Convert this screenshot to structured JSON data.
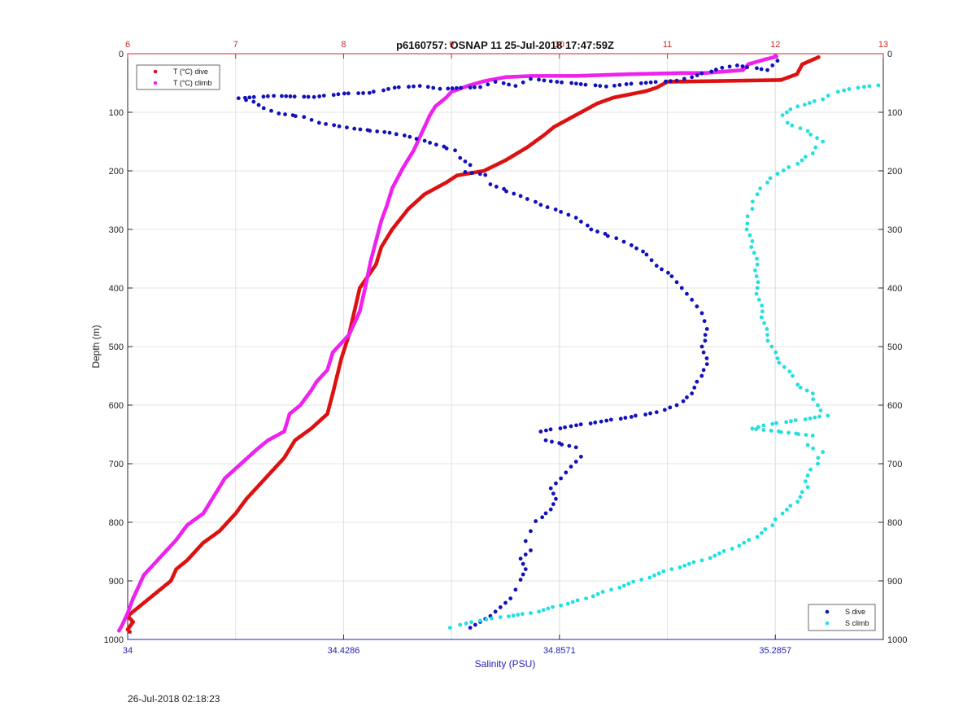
{
  "chart_data": {
    "type": "scatter",
    "title": "p6160757: OSNAP 11 25-Jul-2018 17:47:59Z",
    "ylabel": "Depth (m)",
    "xlabel_bottom": "Salinity (PSU)",
    "ylim": [
      0,
      1000
    ],
    "y_reversed": true,
    "y_ticks": [
      0,
      100,
      200,
      300,
      400,
      500,
      600,
      700,
      800,
      900,
      1000
    ],
    "x_top": {
      "range": [
        6,
        13
      ],
      "ticks": [
        6,
        7,
        8,
        9,
        10,
        11,
        12,
        13
      ],
      "color": "#d62728"
    },
    "x_bottom": {
      "range": [
        34,
        35.5
      ],
      "ticks": [
        34,
        34.4286,
        34.8571,
        35.2857
      ],
      "tick_labels": [
        "34",
        "34.4286",
        "34.8571",
        "35.2857"
      ],
      "color": "#1f1fb4"
    },
    "grid": true,
    "legend_top_left": [
      "T (°C) dive",
      "T (°C) climb"
    ],
    "legend_bottom_right": [
      "S dive",
      "S climb"
    ],
    "series": [
      {
        "name": "T (°C) dive",
        "axis": "top",
        "color": "#dd1111",
        "points": [
          [
            12.4,
            6
          ],
          [
            12.25,
            18
          ],
          [
            12.2,
            35
          ],
          [
            12.05,
            45
          ],
          [
            11.0,
            48
          ],
          [
            10.9,
            58
          ],
          [
            10.8,
            64
          ],
          [
            10.5,
            75
          ],
          [
            10.35,
            85
          ],
          [
            10.2,
            100
          ],
          [
            10.05,
            115
          ],
          [
            9.95,
            125
          ],
          [
            9.85,
            140
          ],
          [
            9.7,
            160
          ],
          [
            9.5,
            182
          ],
          [
            9.3,
            200
          ],
          [
            9.05,
            208
          ],
          [
            8.95,
            220
          ],
          [
            8.75,
            240
          ],
          [
            8.6,
            265
          ],
          [
            8.45,
            300
          ],
          [
            8.35,
            330
          ],
          [
            8.3,
            360
          ],
          [
            8.15,
            400
          ],
          [
            8.1,
            440
          ],
          [
            8.05,
            480
          ],
          [
            7.98,
            520
          ],
          [
            7.9,
            580
          ],
          [
            7.85,
            615
          ],
          [
            7.7,
            640
          ],
          [
            7.55,
            660
          ],
          [
            7.45,
            690
          ],
          [
            7.35,
            710
          ],
          [
            7.2,
            740
          ],
          [
            7.1,
            760
          ],
          [
            7.0,
            785
          ],
          [
            6.85,
            815
          ],
          [
            6.7,
            835
          ],
          [
            6.55,
            865
          ],
          [
            6.45,
            880
          ],
          [
            6.4,
            900
          ],
          [
            6.3,
            915
          ],
          [
            6.2,
            930
          ],
          [
            6.1,
            945
          ],
          [
            6.0,
            960
          ],
          [
            6.05,
            970
          ],
          [
            6.0,
            983
          ],
          [
            6.02,
            987
          ]
        ]
      },
      {
        "name": "T (°C) climb",
        "axis": "top",
        "color": "#ee22ee",
        "points": [
          [
            12.0,
            3
          ],
          [
            12.01,
            5
          ],
          [
            11.9,
            10
          ],
          [
            11.75,
            18
          ],
          [
            11.7,
            28
          ],
          [
            11.35,
            33
          ],
          [
            11.15,
            33
          ],
          [
            10.65,
            35
          ],
          [
            10.15,
            38
          ],
          [
            9.75,
            38
          ],
          [
            9.5,
            40
          ],
          [
            9.3,
            47
          ],
          [
            9.15,
            55
          ],
          [
            9.0,
            65
          ],
          [
            8.95,
            75
          ],
          [
            8.85,
            90
          ],
          [
            8.8,
            105
          ],
          [
            8.75,
            125
          ],
          [
            8.7,
            145
          ],
          [
            8.65,
            165
          ],
          [
            8.55,
            195
          ],
          [
            8.45,
            230
          ],
          [
            8.4,
            260
          ],
          [
            8.35,
            285
          ],
          [
            8.3,
            320
          ],
          [
            8.25,
            355
          ],
          [
            8.2,
            400
          ],
          [
            8.15,
            440
          ],
          [
            8.05,
            480
          ],
          [
            7.9,
            510
          ],
          [
            7.85,
            540
          ],
          [
            7.75,
            560
          ],
          [
            7.7,
            575
          ],
          [
            7.6,
            600
          ],
          [
            7.5,
            615
          ],
          [
            7.45,
            645
          ],
          [
            7.3,
            660
          ],
          [
            7.2,
            675
          ],
          [
            7.05,
            700
          ],
          [
            6.9,
            725
          ],
          [
            6.8,
            755
          ],
          [
            6.7,
            785
          ],
          [
            6.55,
            805
          ],
          [
            6.45,
            830
          ],
          [
            6.35,
            850
          ],
          [
            6.25,
            870
          ],
          [
            6.15,
            890
          ],
          [
            6.1,
            910
          ],
          [
            6.05,
            930
          ],
          [
            6.0,
            955
          ],
          [
            5.95,
            975
          ],
          [
            5.92,
            985
          ]
        ]
      },
      {
        "name": "S dive",
        "axis": "bottom",
        "color": "#1111bb",
        "points": [
          [
            35.29,
            12
          ],
          [
            35.27,
            28
          ],
          [
            35.21,
            20
          ],
          [
            35.18,
            24
          ],
          [
            35.12,
            40
          ],
          [
            35.09,
            46
          ],
          [
            34.99,
            52
          ],
          [
            34.95,
            56
          ],
          [
            34.84,
            47
          ],
          [
            34.8,
            43
          ],
          [
            34.77,
            55
          ],
          [
            34.73,
            48
          ],
          [
            34.7,
            57
          ],
          [
            34.62,
            60
          ],
          [
            34.58,
            55
          ],
          [
            34.53,
            58
          ],
          [
            34.48,
            67
          ],
          [
            34.43,
            68
          ],
          [
            34.37,
            74
          ],
          [
            34.29,
            72
          ],
          [
            34.22,
            76
          ],
          [
            34.25,
            82
          ],
          [
            34.27,
            93
          ],
          [
            34.3,
            102
          ],
          [
            34.35,
            108
          ],
          [
            34.38,
            118
          ],
          [
            34.42,
            124
          ],
          [
            34.45,
            128
          ],
          [
            34.52,
            135
          ],
          [
            34.56,
            142
          ],
          [
            34.6,
            152
          ],
          [
            34.65,
            165
          ],
          [
            34.66,
            178
          ],
          [
            34.68,
            190
          ],
          [
            34.67,
            202
          ],
          [
            34.71,
            207
          ],
          [
            34.72,
            223
          ],
          [
            34.78,
            243
          ],
          [
            34.82,
            258
          ],
          [
            34.86,
            270
          ],
          [
            34.89,
            280
          ],
          [
            34.92,
            300
          ],
          [
            34.97,
            315
          ],
          [
            35.0,
            327
          ],
          [
            35.03,
            343
          ],
          [
            35.05,
            362
          ],
          [
            35.08,
            380
          ],
          [
            35.1,
            400
          ],
          [
            35.12,
            420
          ],
          [
            35.14,
            443
          ],
          [
            35.15,
            470
          ],
          [
            35.14,
            500
          ],
          [
            35.15,
            530
          ],
          [
            35.13,
            560
          ],
          [
            35.12,
            580
          ],
          [
            35.09,
            600
          ],
          [
            35.05,
            612
          ],
          [
            35.0,
            620
          ],
          [
            34.94,
            628
          ],
          [
            34.88,
            636
          ],
          [
            34.82,
            645
          ],
          [
            34.83,
            660
          ],
          [
            34.89,
            672
          ],
          [
            34.9,
            688
          ],
          [
            34.88,
            705
          ],
          [
            34.86,
            725
          ],
          [
            34.84,
            742
          ],
          [
            34.85,
            760
          ],
          [
            34.84,
            778
          ],
          [
            34.81,
            798
          ],
          [
            34.8,
            815
          ],
          [
            34.79,
            832
          ],
          [
            34.8,
            848
          ],
          [
            34.78,
            862
          ],
          [
            34.79,
            880
          ],
          [
            34.78,
            898
          ],
          [
            34.77,
            915
          ],
          [
            34.76,
            930
          ],
          [
            34.74,
            945
          ],
          [
            34.72,
            960
          ],
          [
            34.7,
            970
          ],
          [
            34.68,
            980
          ]
        ]
      },
      {
        "name": "S climb",
        "axis": "bottom",
        "color": "#22e0e0",
        "points": [
          [
            35.49,
            54
          ],
          [
            35.45,
            58
          ],
          [
            35.41,
            65
          ],
          [
            35.38,
            78
          ],
          [
            35.33,
            90
          ],
          [
            35.3,
            105
          ],
          [
            35.31,
            118
          ],
          [
            35.35,
            132
          ],
          [
            35.38,
            150
          ],
          [
            35.36,
            170
          ],
          [
            35.33,
            188
          ],
          [
            35.29,
            205
          ],
          [
            35.27,
            220
          ],
          [
            35.25,
            240
          ],
          [
            35.24,
            265
          ],
          [
            35.23,
            290
          ],
          [
            35.24,
            320
          ],
          [
            35.25,
            360
          ],
          [
            35.25,
            400
          ],
          [
            35.26,
            440
          ],
          [
            35.27,
            480
          ],
          [
            35.29,
            520
          ],
          [
            35.32,
            550
          ],
          [
            35.33,
            565
          ],
          [
            35.36,
            580
          ],
          [
            35.37,
            600
          ],
          [
            35.39,
            618
          ],
          [
            35.28,
            632
          ],
          [
            35.24,
            640
          ],
          [
            35.36,
            652
          ],
          [
            35.35,
            668
          ],
          [
            35.38,
            680
          ],
          [
            35.37,
            700
          ],
          [
            35.35,
            720
          ],
          [
            35.35,
            740
          ],
          [
            35.33,
            765
          ],
          [
            35.3,
            785
          ],
          [
            35.28,
            805
          ],
          [
            35.25,
            825
          ],
          [
            35.2,
            845
          ],
          [
            35.14,
            865
          ],
          [
            35.08,
            880
          ],
          [
            35.02,
            898
          ],
          [
            34.96,
            915
          ],
          [
            34.91,
            930
          ],
          [
            34.86,
            942
          ],
          [
            34.8,
            955
          ],
          [
            34.74,
            962
          ],
          [
            34.7,
            968
          ],
          [
            34.66,
            975
          ],
          [
            34.64,
            980
          ]
        ]
      }
    ]
  },
  "footer": {
    "timestamp": "26-Jul-2018 02:18:23"
  }
}
